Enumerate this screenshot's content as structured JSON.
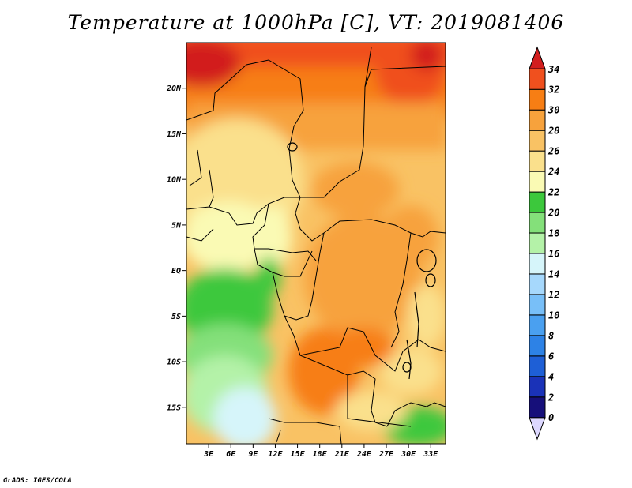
{
  "title": "Temperature at 1000hPa [C], VT: 2019081406",
  "credit": "GrADS: IGES/COLA",
  "map": {
    "lat_ticks": [
      {
        "lat": 20,
        "label": "20N"
      },
      {
        "lat": 15,
        "label": "15N"
      },
      {
        "lat": 10,
        "label": "10N"
      },
      {
        "lat": 5,
        "label": "5N"
      },
      {
        "lat": 0,
        "label": "EQ"
      },
      {
        "lat": -5,
        "label": "5S"
      },
      {
        "lat": -10,
        "label": "10S"
      },
      {
        "lat": -15,
        "label": "15S"
      }
    ],
    "lon_ticks": [
      {
        "lon": 3,
        "label": "3E"
      },
      {
        "lon": 6,
        "label": "6E"
      },
      {
        "lon": 9,
        "label": "9E"
      },
      {
        "lon": 12,
        "label": "12E"
      },
      {
        "lon": 15,
        "label": "15E"
      },
      {
        "lon": 18,
        "label": "18E"
      },
      {
        "lon": 21,
        "label": "21E"
      },
      {
        "lon": 24,
        "label": "24E"
      },
      {
        "lon": 27,
        "label": "27E"
      },
      {
        "lon": 30,
        "label": "30E"
      },
      {
        "lon": 33,
        "label": "33E"
      }
    ],
    "lon_range": [
      0,
      35
    ],
    "lat_range": [
      -19,
      25
    ]
  },
  "colorbar": {
    "levels": [
      "0",
      "2",
      "4",
      "6",
      "8",
      "10",
      "12",
      "14",
      "16",
      "18",
      "20",
      "22",
      "24",
      "26",
      "28",
      "30",
      "32",
      "34"
    ],
    "colors": [
      "#160f7a",
      "#1a32b8",
      "#1e5fd6",
      "#2d82e6",
      "#4aa0f0",
      "#78bff8",
      "#a6d8fc",
      "#d6f5fa",
      "#b4f2a8",
      "#84e07a",
      "#3cc83c",
      "#fafab4",
      "#fae08c",
      "#f9c264",
      "#f7a23c",
      "#f77e14",
      "#f0501e",
      "#d21e1e"
    ]
  }
}
